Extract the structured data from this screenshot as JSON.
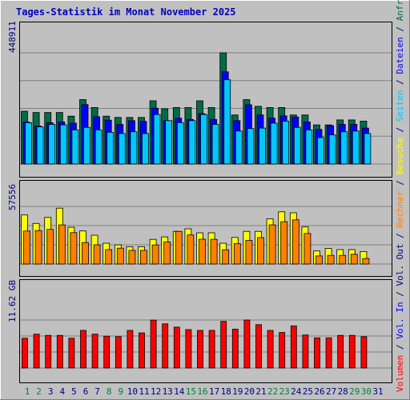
{
  "title": "Tages-Statistik im Monat November 2025",
  "colors": {
    "background": "#c0c0c0",
    "panel": "#c0c0c0",
    "title": "#0000c0",
    "hits": "#006b48",
    "files": "#0000ff",
    "pages": "#00c8ff",
    "visits": "#ffff00",
    "sites": "#ff8000",
    "volume": "#ff0000",
    "day_weekday": "#000080",
    "day_weekend": "#008040",
    "outline": "#000000"
  },
  "right_label": [
    {
      "text": "Volumen",
      "color": "#ff0000"
    },
    {
      "text": " / ",
      "color": "#000080"
    },
    {
      "text": "Vol. In",
      "color": "#0000ff"
    },
    {
      "text": " / ",
      "color": "#000080"
    },
    {
      "text": "Vol. Out",
      "color": "#000080"
    },
    {
      "text": " / ",
      "color": "#000080"
    },
    {
      "text": "Rechner",
      "color": "#ff8000"
    },
    {
      "text": " / ",
      "color": "#000080"
    },
    {
      "text": "Besuche",
      "color": "#ffff00"
    },
    {
      "text": " / ",
      "color": "#000080"
    },
    {
      "text": "Seiten",
      "color": "#00c8ff"
    },
    {
      "text": " / ",
      "color": "#000080"
    },
    {
      "text": "Dateien",
      "color": "#0000ff"
    },
    {
      "text": " / ",
      "color": "#000080"
    },
    {
      "text": "Anfragen",
      "color": "#006b48"
    }
  ],
  "chart_data": [
    {
      "type": "bar",
      "name": "hits-files-pages",
      "ymax_label": "448911",
      "ylim": [
        0,
        448911
      ],
      "categories": [
        "1",
        "2",
        "3",
        "4",
        "5",
        "6",
        "7",
        "8",
        "9",
        "10",
        "11",
        "12",
        "13",
        "14",
        "15",
        "16",
        "17",
        "18",
        "19",
        "20",
        "21",
        "22",
        "23",
        "24",
        "25",
        "26",
        "27",
        "28",
        "29",
        "30"
      ],
      "series": [
        {
          "name": "Anfragen",
          "color_key": "hits",
          "values": [
            213000,
            208000,
            208000,
            208000,
            193000,
            260000,
            228000,
            193000,
            188000,
            188000,
            188000,
            255000,
            223000,
            228000,
            228000,
            255000,
            228000,
            448911,
            198000,
            260000,
            233000,
            228000,
            228000,
            198000,
            198000,
            158000,
            158000,
            178000,
            178000,
            173000
          ]
        },
        {
          "name": "Dateien",
          "color_key": "files",
          "values": [
            170000,
            153000,
            167000,
            170000,
            165000,
            240000,
            191000,
            177000,
            160000,
            175000,
            172000,
            225000,
            175000,
            185000,
            180000,
            203000,
            180000,
            372000,
            175000,
            239000,
            198000,
            185000,
            194000,
            190000,
            170000,
            140000,
            155000,
            160000,
            160000,
            145000
          ]
        },
        {
          "name": "Seiten",
          "color_key": "pages",
          "values": [
            167000,
            150000,
            160000,
            158000,
            138000,
            148000,
            138000,
            128000,
            123000,
            130000,
            123000,
            200000,
            175000,
            167000,
            175000,
            200000,
            160000,
            340000,
            133000,
            143000,
            145000,
            165000,
            173000,
            148000,
            138000,
            107000,
            118000,
            130000,
            133000,
            123000
          ]
        }
      ]
    },
    {
      "type": "bar",
      "name": "visits-sites",
      "ymax_label": "57556",
      "ylim": [
        0,
        57556
      ],
      "categories": [
        "1",
        "2",
        "3",
        "4",
        "5",
        "6",
        "7",
        "8",
        "9",
        "10",
        "11",
        "12",
        "13",
        "14",
        "15",
        "16",
        "17",
        "18",
        "19",
        "20",
        "21",
        "22",
        "23",
        "24",
        "25",
        "26",
        "27",
        "28",
        "29",
        "30"
      ],
      "series": [
        {
          "name": "Besuche",
          "color_key": "visits",
          "values": [
            49000,
            40500,
            46500,
            55800,
            36700,
            33000,
            28800,
            20800,
            19100,
            17300,
            17300,
            24600,
            27100,
            32600,
            35200,
            31200,
            31200,
            20800,
            26500,
            32600,
            32600,
            45200,
            52100,
            51200,
            37000,
            13000,
            15500,
            14400,
            14400,
            12500
          ]
        },
        {
          "name": "Rechner",
          "color_key": "sites",
          "values": [
            32900,
            33400,
            34600,
            39100,
            31300,
            21400,
            19200,
            14400,
            15800,
            13600,
            13600,
            19000,
            22000,
            32600,
            29000,
            24800,
            24600,
            14200,
            20400,
            23600,
            26400,
            39100,
            42300,
            44100,
            30500,
            8100,
            8600,
            8600,
            9700,
            5400
          ]
        }
      ]
    },
    {
      "type": "bar",
      "name": "volume",
      "ymax_label": "11.62 GB",
      "ylim": [
        0,
        11.62
      ],
      "categories": [
        "1",
        "2",
        "3",
        "4",
        "5",
        "6",
        "7",
        "8",
        "9",
        "10",
        "11",
        "12",
        "13",
        "14",
        "15",
        "16",
        "17",
        "18",
        "19",
        "20",
        "21",
        "22",
        "23",
        "24",
        "25",
        "26",
        "27",
        "28",
        "29",
        "30"
      ],
      "series": [
        {
          "name": "Volumen",
          "color_key": "volume",
          "values": [
            7.2,
            8.2,
            7.9,
            7.9,
            7.2,
            9.1,
            8.2,
            7.7,
            7.6,
            9.1,
            8.5,
            11.6,
            10.7,
            9.9,
            9.3,
            9.1,
            9.1,
            11.3,
            9.4,
            11.62,
            10.5,
            9.1,
            8.6,
            10.2,
            8.0,
            7.3,
            7.3,
            7.9,
            7.9,
            7.6
          ]
        }
      ]
    }
  ],
  "x_axis": {
    "days": [
      "1",
      "2",
      "3",
      "4",
      "5",
      "6",
      "7",
      "8",
      "9",
      "10",
      "11",
      "12",
      "13",
      "14",
      "15",
      "16",
      "17",
      "18",
      "19",
      "20",
      "21",
      "22",
      "23",
      "24",
      "25",
      "26",
      "27",
      "28",
      "29",
      "30",
      "31"
    ],
    "weekend_days": [
      "1",
      "2",
      "8",
      "9",
      "15",
      "16",
      "22",
      "23",
      "29",
      "30"
    ]
  }
}
